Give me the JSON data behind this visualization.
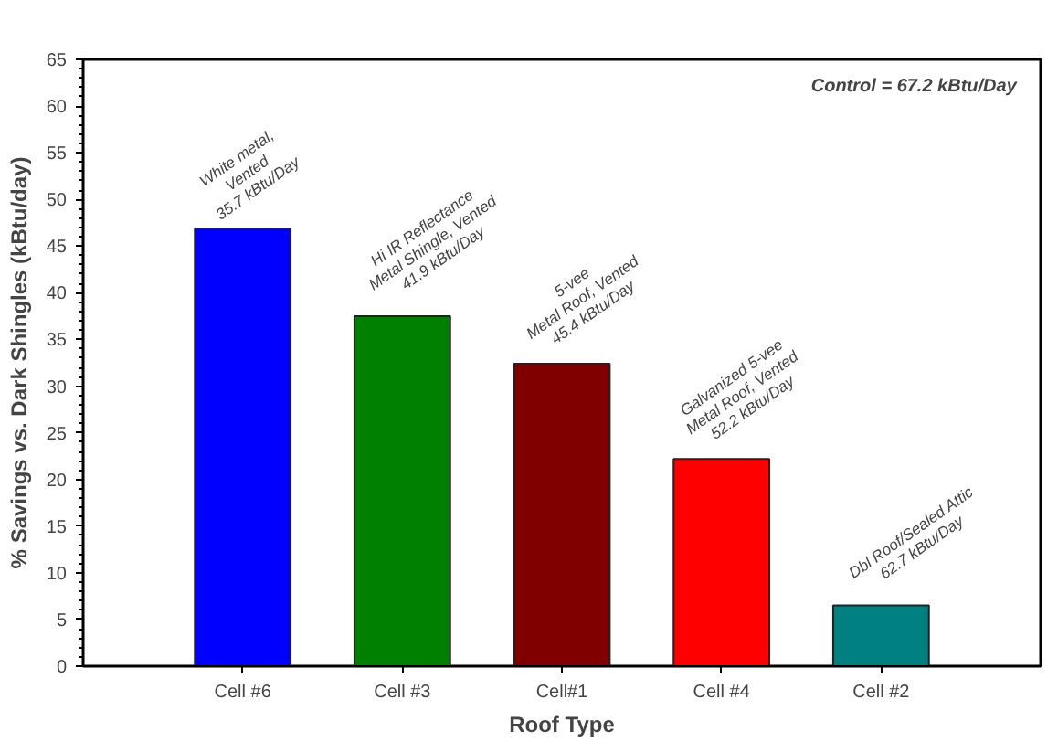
{
  "chart_data": {
    "type": "bar",
    "xlabel": "Roof Type",
    "ylabel": "% Savings vs. Dark Shingles (kBtu/day)",
    "categories": [
      "Cell #6",
      "Cell #3",
      "Cell#1",
      "Cell #4",
      "Cell #2"
    ],
    "values": [
      46.9,
      37.5,
      32.4,
      22.2,
      6.5
    ],
    "colors": [
      "#0000ff",
      "#008000",
      "#800000",
      "#ff0000",
      "#008080"
    ],
    "ylim": [
      0,
      65
    ],
    "yticks": [
      0,
      5,
      10,
      15,
      20,
      25,
      30,
      35,
      40,
      45,
      50,
      55,
      60,
      65
    ],
    "grid": false,
    "annotations": [
      "Control = 67.2 kBtu/Day",
      {
        "text": "White metal,\nVented\n35.7 kBtu/Day",
        "x": "Cell #6",
        "y": 46.9
      },
      {
        "text": "Hi IR Reflectance\nMetal Shingle, Vented\n41.9 kBtu/Day",
        "x": "Cell #3",
        "y": 37.5
      },
      {
        "text": "5-vee\nMetal Roof, Vented\n45.4 kBtu/Day",
        "x": "Cell#1",
        "y": 32.4
      },
      {
        "text": "Galvanized 5-vee\nMetal Roof, Vented\n52.2 kBtu/Day",
        "x": "Cell #4",
        "y": 22.2
      },
      {
        "text": "Dbl Roof/Sealed Attic\n62.7 kBtu/Day",
        "x": "Cell #2",
        "y": 6.5
      }
    ]
  }
}
